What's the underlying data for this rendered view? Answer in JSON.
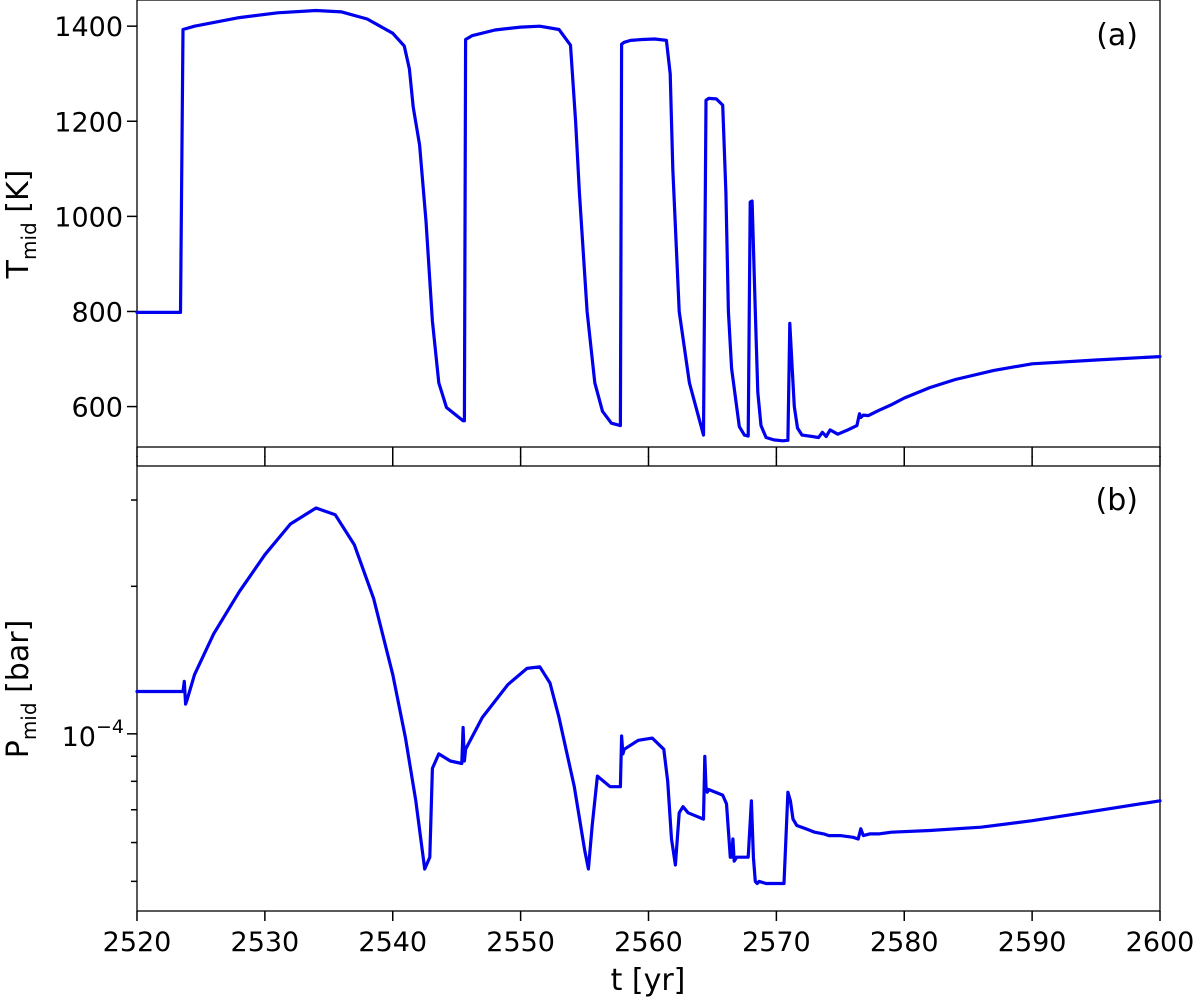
{
  "chart_data": [
    {
      "type": "line",
      "panel_label": "(a)",
      "ylabel_main": "T",
      "ylabel_sub": "mid",
      "ylabel_unit": " [K]",
      "xlim": [
        2520,
        2600
      ],
      "ylim": [
        515,
        1455
      ],
      "yticks": [
        600,
        800,
        1000,
        1200,
        1400
      ],
      "ytick_labels": [
        "600",
        "800",
        "1000",
        "1200",
        "1400"
      ],
      "xticks": [
        2520,
        2530,
        2540,
        2550,
        2560,
        2570,
        2580,
        2590,
        2600
      ],
      "grid": false,
      "series": [
        {
          "color": "#0000ee",
          "x": [
            2520,
            2523.4,
            2523.6,
            2524.5,
            2528,
            2531,
            2534,
            2536,
            2538,
            2540,
            2540.9,
            2541.3,
            2541.6,
            2542.1,
            2542.6,
            2543.1,
            2543.6,
            2544.2,
            2545.5,
            2545.6,
            2545.7,
            2546.2,
            2548,
            2550,
            2551.5,
            2553,
            2553.9,
            2554.3,
            2554.6,
            2555.2,
            2555.8,
            2556.4,
            2557.1,
            2557.8,
            2557.9,
            2558.1,
            2558.6,
            2559.5,
            2560.5,
            2561.4,
            2561.7,
            2561.9,
            2562.4,
            2563.2,
            2564.3,
            2564.5,
            2564.7,
            2565.3,
            2565.8,
            2566.05,
            2566.25,
            2566.5,
            2567.1,
            2567.5,
            2567.8,
            2567.95,
            2568.1,
            2568.35,
            2568.55,
            2568.8,
            2569.2,
            2569.8,
            2570.5,
            2570.9,
            2571.05,
            2571.2,
            2571.4,
            2571.65,
            2572,
            2572.8,
            2573.3,
            2573.6,
            2573.9,
            2574.2,
            2574.8,
            2575.5,
            2576.3,
            2576.5,
            2576.6,
            2576.8,
            2577.2,
            2578,
            2579,
            2580,
            2582,
            2584,
            2587,
            2590,
            2595,
            2600
          ],
          "y": [
            798,
            798,
            1393,
            1400,
            1418,
            1428,
            1433,
            1430,
            1415,
            1385,
            1358,
            1310,
            1230,
            1150,
            990,
            780,
            650,
            598,
            570,
            570,
            1372,
            1380,
            1392,
            1398,
            1400,
            1393,
            1360,
            1200,
            1050,
            800,
            650,
            590,
            565,
            560,
            1362,
            1366,
            1370,
            1372,
            1373,
            1370,
            1300,
            1100,
            800,
            650,
            540,
            1244,
            1248,
            1247,
            1234,
            1050,
            800,
            680,
            558,
            540,
            538,
            1030,
            1032,
            800,
            630,
            560,
            535,
            530,
            528,
            529,
            775,
            700,
            600,
            555,
            540,
            537,
            535,
            546,
            537,
            551,
            542,
            550,
            560,
            585,
            577,
            582,
            581,
            592,
            604,
            618,
            640,
            657,
            676,
            690,
            698,
            705
          ]
        }
      ]
    },
    {
      "type": "line",
      "panel_label": "(b)",
      "ylabel_main": "P",
      "ylabel_sub": "mid",
      "ylabel_unit": " [bar]",
      "ytick_label_base": "10",
      "ytick_label_exp": "−4",
      "ytick_value": 0.0001,
      "yscale": "log",
      "xlabel": "t [yr]",
      "xlim": [
        2520,
        2600
      ],
      "ylim": [
        4.35e-05,
        0.000352
      ],
      "xticks": [
        2520,
        2530,
        2540,
        2550,
        2560,
        2570,
        2580,
        2590,
        2600
      ],
      "xtick_labels": [
        "2520",
        "2530",
        "2540",
        "2550",
        "2560",
        "2570",
        "2580",
        "2590",
        "2600"
      ],
      "grid": false,
      "series": [
        {
          "color": "#0000ee",
          "x": [
            2520,
            2523.6,
            2523.7,
            2523.8,
            2523.9,
            2524.5,
            2526,
            2528,
            2530,
            2532,
            2534,
            2535.5,
            2537,
            2538.5,
            2540,
            2541,
            2541.8,
            2542.3,
            2542.5,
            2542.9,
            2543.1,
            2543.6,
            2544.5,
            2545.4,
            2545.5,
            2545.6,
            2545.7,
            2547,
            2549,
            2550.5,
            2551.5,
            2552.3,
            2553,
            2554.2,
            2555,
            2555.3,
            2555.6,
            2556,
            2557,
            2557.8,
            2557.9,
            2558,
            2558.1,
            2559.2,
            2560.3,
            2561.2,
            2561.5,
            2561.8,
            2562.1,
            2562.4,
            2562.7,
            2563.1,
            2564.3,
            2564.4,
            2564.5,
            2564.6,
            2564.7,
            2565.8,
            2566.1,
            2566.4,
            2566.5,
            2566.6,
            2566.7,
            2566.9,
            2567.8,
            2568.05,
            2568.2,
            2568.35,
            2568.5,
            2568.65,
            2569.2,
            2570.6,
            2570.9,
            2571.1,
            2571.3,
            2571.6,
            2572.3,
            2573,
            2573.7,
            2574.1,
            2575,
            2576,
            2576.4,
            2576.6,
            2576.8,
            2577.3,
            2578,
            2579,
            2582,
            2586,
            2590,
            2594,
            2600
          ],
          "y": [
            0.000122,
            0.000122,
            0.000128,
            0.000115,
            0.000117,
            0.000132,
            0.00016,
            0.000195,
            0.000232,
            0.000268,
            0.000289,
            0.00028,
            0.000243,
            0.000189,
            0.000132,
            9.8e-05,
            7.3e-05,
            5.8e-05,
            5.3e-05,
            5.6e-05,
            8.5e-05,
            9.1e-05,
            8.8e-05,
            8.7e-05,
            0.000103,
            8.8e-05,
            9.3e-05,
            0.000108,
            0.000126,
            0.000136,
            0.000137,
            0.000127,
            0.000108,
            7.8e-05,
            5.8e-05,
            5.3e-05,
            6.5e-05,
            8.2e-05,
            7.8e-05,
            7.8e-05,
            9.9e-05,
            9.1e-05,
            9.3e-05,
            9.7e-05,
            9.8e-05,
            9.3e-05,
            8e-05,
            6.1e-05,
            5.4e-05,
            6.9e-05,
            7.1e-05,
            6.9e-05,
            6.7e-05,
            9e-05,
            7.8e-05,
            7.6e-05,
            7.7e-05,
            7.5e-05,
            7.2e-05,
            5.6e-05,
            5.6e-05,
            6.1e-05,
            5.5e-05,
            5.6e-05,
            5.6e-05,
            7.3e-05,
            5.6e-05,
            5e-05,
            4.95e-05,
            5e-05,
            4.95e-05,
            4.95e-05,
            7.6e-05,
            7.3e-05,
            6.7e-05,
            6.5e-05,
            6.4e-05,
            6.3e-05,
            6.25e-05,
            6.2e-05,
            6.2e-05,
            6.15e-05,
            6.1e-05,
            6.4e-05,
            6.2e-05,
            6.25e-05,
            6.25e-05,
            6.3e-05,
            6.35e-05,
            6.45e-05,
            6.65e-05,
            6.9e-05,
            7.3e-05
          ]
        }
      ]
    }
  ]
}
